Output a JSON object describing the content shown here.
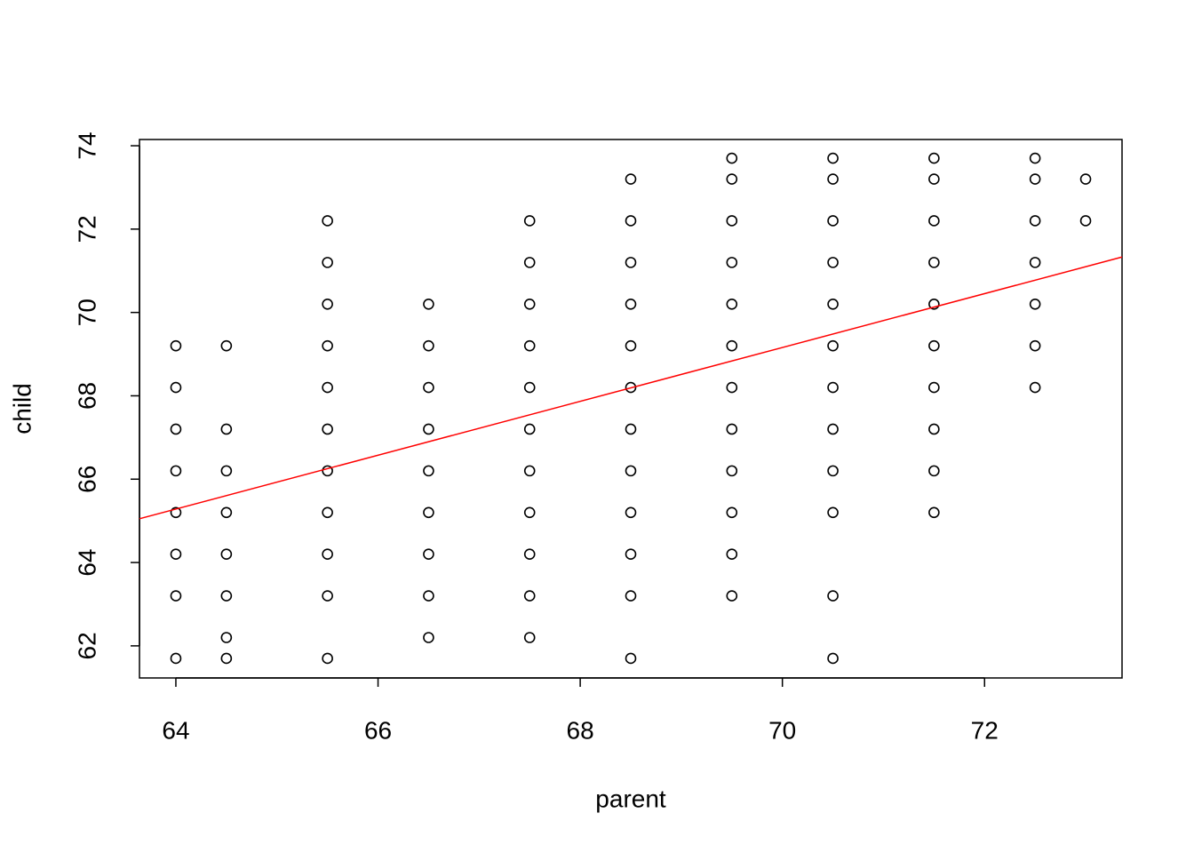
{
  "chart_data": {
    "type": "scatter",
    "xlabel": "parent",
    "ylabel": "child",
    "xlim": [
      63.64,
      73.36
    ],
    "ylim": [
      61.23,
      74.15
    ],
    "xticks": [
      64,
      66,
      68,
      70,
      72
    ],
    "yticks": [
      62,
      64,
      66,
      68,
      70,
      72,
      74
    ],
    "points": {
      "color": "#000000",
      "x": [
        64,
        64,
        64,
        64,
        64,
        64,
        64,
        64,
        64.5,
        64.5,
        64.5,
        64.5,
        64.5,
        64.5,
        64.5,
        64.5,
        65.5,
        65.5,
        65.5,
        65.5,
        65.5,
        65.5,
        65.5,
        65.5,
        65.5,
        65.5,
        65.5,
        66.5,
        66.5,
        66.5,
        66.5,
        66.5,
        66.5,
        66.5,
        66.5,
        66.5,
        67.5,
        67.5,
        67.5,
        67.5,
        67.5,
        67.5,
        67.5,
        67.5,
        67.5,
        67.5,
        67.5,
        68.5,
        68.5,
        68.5,
        68.5,
        68.5,
        68.5,
        68.5,
        68.5,
        68.5,
        68.5,
        68.5,
        68.5,
        69.5,
        69.5,
        69.5,
        69.5,
        69.5,
        69.5,
        69.5,
        69.5,
        69.5,
        69.5,
        69.5,
        69.5,
        70.5,
        70.5,
        70.5,
        70.5,
        70.5,
        70.5,
        70.5,
        70.5,
        70.5,
        70.5,
        70.5,
        70.5,
        71.5,
        71.5,
        71.5,
        71.5,
        71.5,
        71.5,
        71.5,
        71.5,
        71.5,
        71.5,
        72.5,
        72.5,
        72.5,
        72.5,
        72.5,
        72.5,
        72.5,
        73,
        73
      ],
      "values": [
        69.2,
        68.2,
        67.2,
        66.2,
        65.2,
        64.2,
        63.2,
        61.7,
        69.2,
        67.2,
        66.2,
        65.2,
        64.2,
        63.2,
        62.2,
        61.7,
        72.2,
        71.2,
        70.2,
        69.2,
        68.2,
        67.2,
        66.2,
        65.2,
        64.2,
        63.2,
        61.7,
        70.2,
        69.2,
        68.2,
        67.2,
        66.2,
        65.2,
        64.2,
        63.2,
        62.2,
        72.2,
        71.2,
        70.2,
        69.2,
        68.2,
        67.2,
        66.2,
        65.2,
        64.2,
        63.2,
        62.2,
        73.2,
        72.2,
        71.2,
        70.2,
        69.2,
        68.2,
        67.2,
        66.2,
        65.2,
        64.2,
        63.2,
        61.7,
        73.7,
        73.2,
        72.2,
        71.2,
        70.2,
        69.2,
        68.2,
        67.2,
        66.2,
        65.2,
        64.2,
        63.2,
        73.7,
        73.2,
        72.2,
        71.2,
        70.2,
        69.2,
        68.2,
        67.2,
        66.2,
        65.2,
        63.2,
        61.7,
        73.7,
        73.2,
        72.2,
        71.2,
        70.2,
        69.2,
        68.2,
        67.2,
        66.2,
        65.2,
        73.7,
        73.2,
        72.2,
        71.2,
        70.2,
        69.2,
        68.2,
        73.2,
        72.2
      ]
    },
    "line": {
      "color": "#ff0000",
      "x": [
        63.64,
        73.36
      ],
      "values": [
        65.05,
        71.33
      ]
    }
  }
}
